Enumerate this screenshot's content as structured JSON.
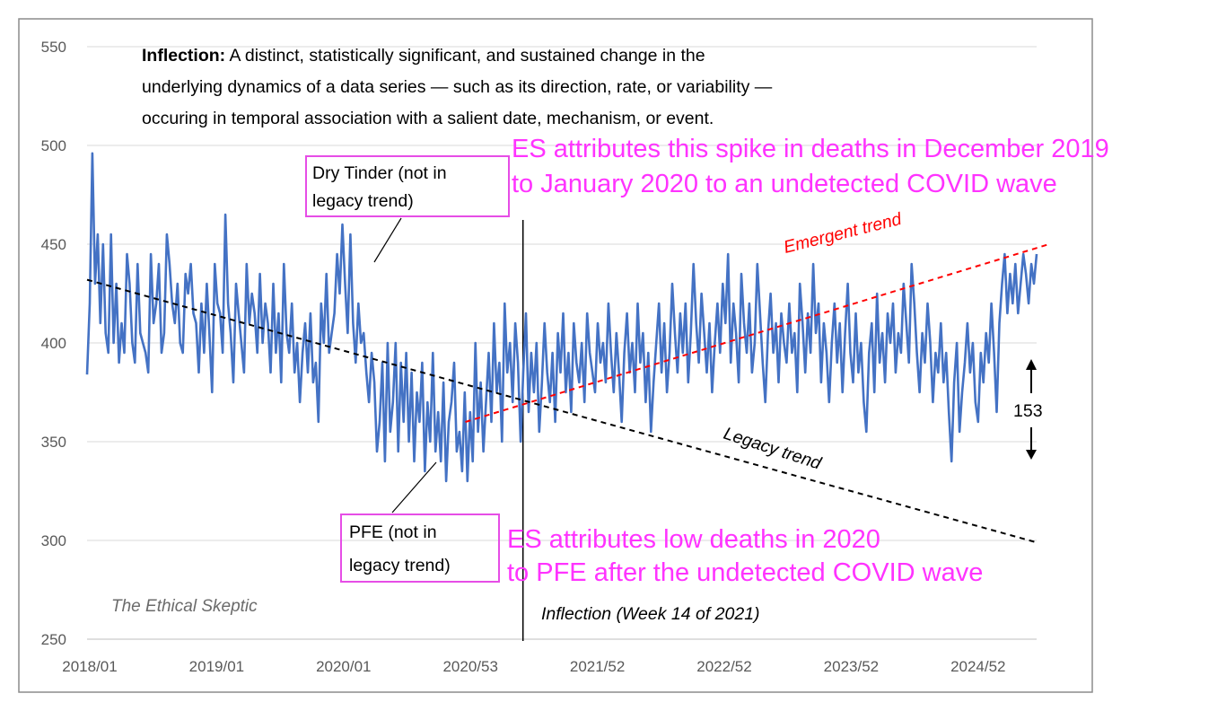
{
  "chart_data": {
    "type": "line",
    "y_ticks": [
      550,
      500,
      450,
      400,
      350,
      300,
      250
    ],
    "x_ticks": [
      "2018/01",
      "2019/01",
      "2020/01",
      "2020/53",
      "2021/52",
      "2022/52",
      "2023/52",
      "2024/52"
    ],
    "ylim": [
      250,
      550
    ],
    "x_unit": "week",
    "xlim_weeks": [
      1,
      380
    ],
    "grid": "horizontal",
    "series": [
      {
        "kind": "weekly deaths",
        "color": "#4472c4",
        "values": [
          384,
          420,
          496,
          430,
          455,
          410,
          450,
          405,
          395,
          455,
          400,
          430,
          390,
          410,
          395,
          445,
          430,
          400,
          390,
          440,
          405,
          400,
          395,
          385,
          445,
          410,
          420,
          440,
          395,
          405,
          455,
          440,
          420,
          410,
          430,
          400,
          395,
          435,
          425,
          440,
          415,
          410,
          385,
          420,
          395,
          430,
          405,
          375,
          440,
          420,
          415,
          395,
          465,
          420,
          405,
          380,
          430,
          415,
          400,
          385,
          440,
          410,
          425,
          415,
          395,
          435,
          400,
          420,
          410,
          385,
          430,
          395,
          415,
          380,
          440,
          405,
          395,
          420,
          385,
          400,
          370,
          395,
          410,
          385,
          415,
          380,
          390,
          360,
          420,
          400,
          435,
          395,
          405,
          415,
          445,
          425,
          460,
          430,
          405,
          455,
          410,
          390,
          420,
          400,
          405,
          385,
          370,
          395,
          380,
          345,
          360,
          390,
          340,
          400,
          355,
          370,
          400,
          345,
          390,
          360,
          395,
          350,
          385,
          340,
          375,
          360,
          390,
          335,
          370,
          350,
          395,
          345,
          365,
          340,
          380,
          330,
          360,
          370,
          390,
          345,
          355,
          335,
          375,
          330,
          365,
          340,
          400,
          355,
          380,
          345,
          370,
          395,
          360,
          410,
          375,
          390,
          350,
          420,
          385,
          400,
          370,
          410,
          390,
          350,
          385,
          415,
          365,
          395,
          375,
          400,
          355,
          380,
          410,
          385,
          370,
          395,
          360,
          405,
          385,
          415,
          375,
          395,
          365,
          410,
          390,
          380,
          400,
          370,
          415,
          395,
          385,
          375,
          410,
          390,
          400,
          380,
          420,
          395,
          375,
          405,
          385,
          360,
          395,
          415,
          385,
          400,
          375,
          420,
          390,
          405,
          370,
          395,
          355,
          380,
          400,
          420,
          385,
          410,
          375,
          395,
          430,
          405,
          385,
          415,
          395,
          420,
          380,
          405,
          440,
          410,
          390,
          425,
          405,
          385,
          410,
          375,
          400,
          420,
          395,
          430,
          410,
          445,
          390,
          420,
          405,
          380,
          435,
          410,
          395,
          420,
          385,
          400,
          440,
          415,
          390,
          370,
          405,
          425,
          395,
          410,
          380,
          415,
          400,
          390,
          420,
          395,
          405,
          375,
          430,
          410,
          385,
          415,
          395,
          440,
          405,
          420,
          380,
          410,
          395,
          370,
          400,
          420,
          390,
          410,
          375,
          405,
          430,
          395,
          380,
          415,
          385,
          400,
          370,
          355,
          395,
          410,
          375,
          425,
          390,
          405,
          380,
          415,
          400,
          420,
          385,
          405,
          395,
          430,
          410,
          390,
          440,
          420,
          395,
          375,
          405,
          390,
          420,
          400,
          370,
          395,
          385,
          410,
          380,
          395,
          365,
          340,
          380,
          400,
          355,
          375,
          390,
          410,
          385,
          400,
          370,
          360,
          395,
          380,
          405,
          390,
          420,
          395,
          365,
          410,
          430,
          445,
          415,
          435,
          420,
          440,
          415,
          430,
          445,
          435,
          420,
          440,
          430,
          445
        ]
      },
      {
        "kind": "legacy trend",
        "color": "#000000",
        "dashed": true,
        "start": {
          "week": 1,
          "value": 432
        },
        "end": {
          "week": 380,
          "value": 299
        }
      },
      {
        "kind": "emergent trend",
        "color": "#ff0000",
        "dashed": true,
        "start": {
          "week": 152,
          "value": 360
        },
        "end": {
          "week": 385,
          "value": 450
        }
      }
    ],
    "inflection_week": 175
  },
  "annotations": {
    "definition_bold": "Inflection:",
    "definition_line1": " A distinct, statistically significant, and sustained change in the",
    "definition_line2": "underlying dynamics of a data series — such as its direction, rate, or variability —",
    "definition_line3": "occuring in temporal association with a salient date, mechanism, or event.",
    "dry_tinder_line1": "Dry Tinder (not in",
    "dry_tinder_line2": "legacy trend)",
    "pfe_line1": "PFE (not in",
    "pfe_line2": "legacy trend)",
    "emergent_trend": "Emergent trend",
    "legacy_trend": "Legacy trend",
    "inflection_label": "Inflection (Week 14  of 2021)",
    "gap_value": "153",
    "watermark": "The Ethical Skeptic",
    "es_spike_line1": "ES attributes this spike in deaths in December 2019",
    "es_spike_line2": "to January 2020 to an undetected COVID wave",
    "es_low_line1": "ES attributes low deaths in 2020",
    "es_low_line2": "to PFE after the undetected COVID wave"
  },
  "colors": {
    "series": "#4472c4",
    "emergent": "#ff0000",
    "legacy": "#000000",
    "annotation_pink": "#ff33ff",
    "grid": "#d9d9d9",
    "frame": "#7f7f7f"
  }
}
